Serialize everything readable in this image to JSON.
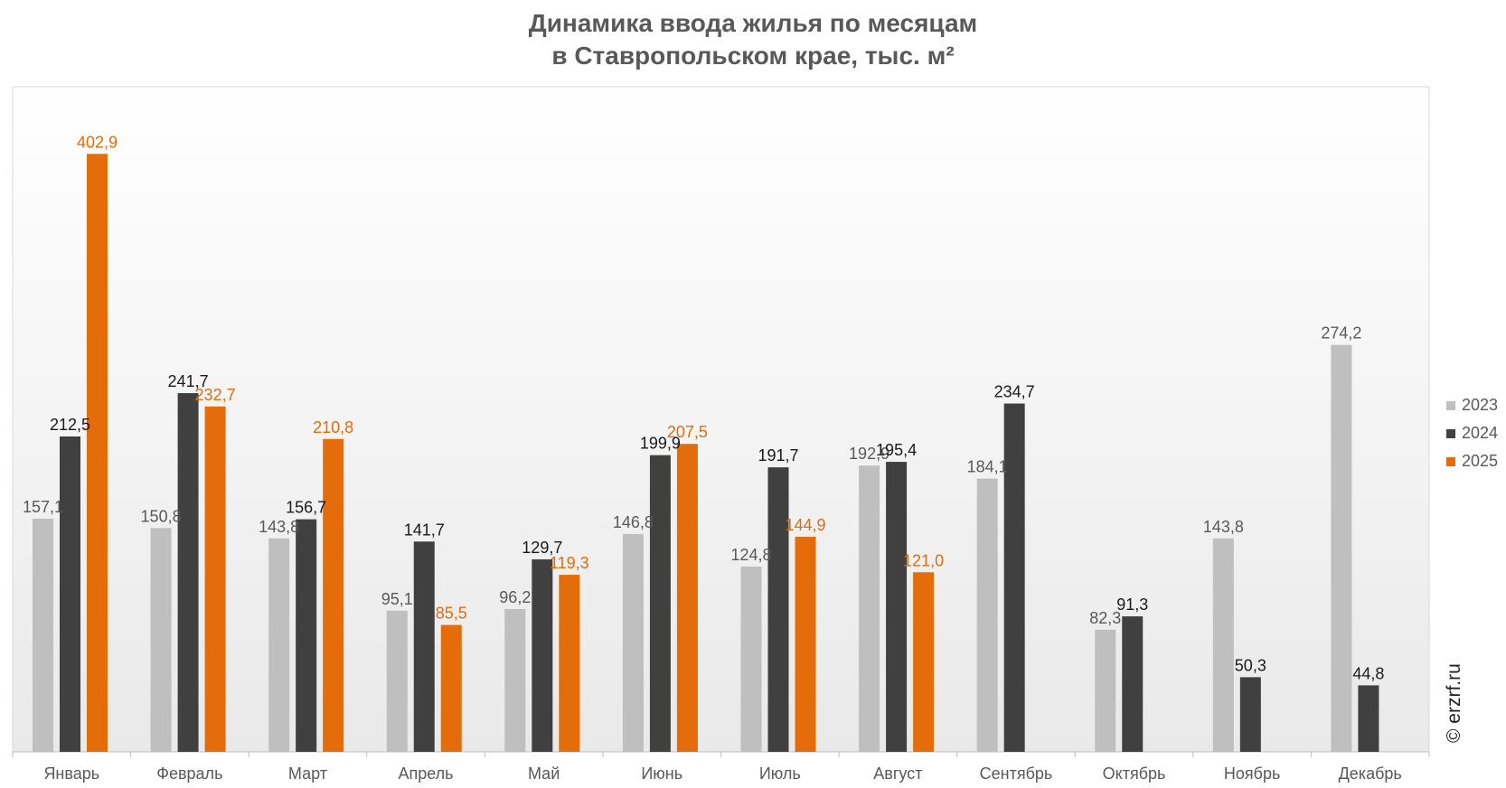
{
  "chart_data": {
    "type": "bar",
    "title": [
      "Динамика ввода жилья по месяцам",
      "в Ставропольском крае, тыс. м²"
    ],
    "xlabel": "",
    "ylabel": "",
    "ylim": [
      0,
      440
    ],
    "grid": false,
    "legend_position": "right",
    "categories": [
      "Январь",
      "Февраль",
      "Март",
      "Апрель",
      "Май",
      "Июнь",
      "Июль",
      "Август",
      "Сентябрь",
      "Октябрь",
      "Ноябрь",
      "Декабрь"
    ],
    "series": [
      {
        "name": "2023",
        "color": "#bfbfbf",
        "label_color": "#595959",
        "values": [
          157.1,
          150.8,
          143.8,
          95.1,
          96.2,
          146.8,
          124.8,
          192.9,
          184.1,
          82.3,
          143.8,
          274.2
        ],
        "labels": [
          "157,1",
          "150,8",
          "143,8",
          "95,1",
          "96,2",
          "146,8",
          "124,8",
          "192,9",
          "184,1",
          "82,3",
          "143,8",
          "274,2"
        ]
      },
      {
        "name": "2024",
        "color": "#404040",
        "label_color": "#1a1a1a",
        "values": [
          212.5,
          241.7,
          156.7,
          141.7,
          129.7,
          199.9,
          191.7,
          195.4,
          234.7,
          91.3,
          50.3,
          44.8
        ],
        "labels": [
          "212,5",
          "241,7",
          "156,7",
          "141,7",
          "129,7",
          "199,9",
          "191,7",
          "195,4",
          "234,7",
          "91,3",
          "50,3",
          "44,8"
        ]
      },
      {
        "name": "2025",
        "color": "#e46c0a",
        "label_color": "#e46c0a",
        "values": [
          402.9,
          232.7,
          210.8,
          85.5,
          119.3,
          207.5,
          144.9,
          121.0,
          null,
          null,
          null,
          null
        ],
        "labels": [
          "402,9",
          "232,7",
          "210,8",
          "85,5",
          "119,3",
          "207,5",
          "144,9",
          "121,0",
          null,
          null,
          null,
          null
        ]
      }
    ]
  },
  "watermark": "© erzrf.ru"
}
